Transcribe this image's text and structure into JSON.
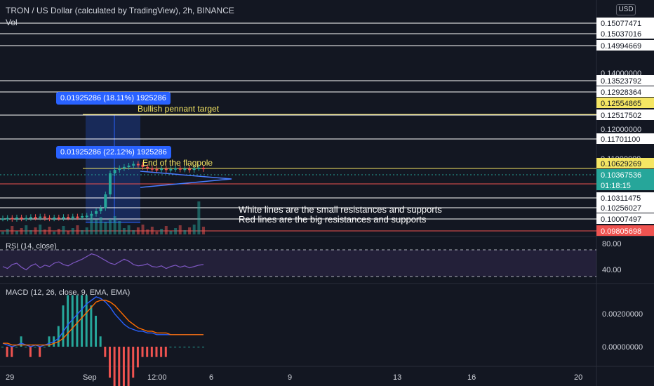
{
  "header": {
    "title": "TRON / US Dollar (calculated by TradingView), 2h, BINANCE",
    "vol_label": "Vol",
    "currency_button": "USD"
  },
  "annotations": {
    "measure_1": "0.01925286 (18.11%) 1925286",
    "measure_2": "0.01925286 (22.12%) 1925286",
    "target_label": "Bullish pennant target",
    "flagpole_label": "End of the flagpole",
    "note_line1": "White lines are the small resistances and supports",
    "note_line2": "Red lines are the big resistances and supports"
  },
  "indicators": {
    "rsi_title": "RSI (14, close)",
    "macd_title": "MACD (12, 26, close, 9, EMA, EMA)"
  },
  "colors": {
    "background": "#131722",
    "up": "#26a69a",
    "down": "#ef5350",
    "white_line": "#ffffff",
    "red_line": "#ef5350",
    "yellow": "#f5e663",
    "blue_accent": "#2962ff",
    "rsi_line": "#7e57c2",
    "macd_line": "#2962ff",
    "signal_line": "#ff6d00"
  },
  "chart_data": {
    "type": "line",
    "price_axis": {
      "labels": [
        "0.15077471",
        "0.15037016",
        "0.14994669",
        "0.14000000",
        "0.13523792",
        "0.12928364",
        "0.12554865",
        "0.12517502",
        "0.12000000",
        "0.11701100",
        "0.11000000",
        "0.10629269",
        "0.10367536",
        "01:18:15",
        "0.10311475",
        "0.10256027",
        "0.10007497",
        "0.09805698"
      ],
      "ylim": [
        0.098,
        0.152
      ]
    },
    "time_axis": [
      "29",
      "Sep",
      "12:00",
      "6",
      "9",
      "13",
      "16",
      "20"
    ],
    "white_lines": [
      0.15077471,
      0.15037016,
      0.14994669,
      0.13523792,
      0.12928364,
      0.12517502,
      0.117011,
      0.10311475,
      0.10256027,
      0.10007497
    ],
    "red_lines": [
      0.09805698,
      0.10629269
    ],
    "yellow_lines": [
      0.12554865,
      0.10629269
    ],
    "current_price": 0.10367536,
    "highlight_labels": {
      "yellow_tags": [
        "0.12554865",
        "0.10629269"
      ],
      "green_tag": "0.10367536",
      "green_countdown": "01:18:15",
      "red_tag": "0.09805698"
    },
    "price_series": [
      0.1002,
      0.1003,
      0.1001,
      0.1004,
      0.1002,
      0.1003,
      0.1005,
      0.1004,
      0.1006,
      0.1003,
      0.1002,
      0.1004,
      0.1003,
      0.1005,
      0.1004,
      0.1006,
      0.1005,
      0.1007,
      0.1008,
      0.1012,
      0.1018,
      0.1025,
      0.1032,
      0.104,
      0.1048,
      0.1052,
      0.1055,
      0.1058,
      0.1062,
      0.106,
      0.1055,
      0.1052,
      0.105,
      0.1049,
      0.1051,
      0.1048,
      0.105,
      0.1052,
      0.1049,
      0.1051,
      0.1048,
      0.1052,
      0.1053,
      0.105
    ],
    "rsi": {
      "levels": [
        "80.00",
        "40.00"
      ],
      "values": [
        55,
        52,
        58,
        60,
        54,
        50,
        56,
        59,
        53,
        57,
        55,
        60,
        62,
        58,
        56,
        60,
        63,
        66,
        70,
        74,
        72,
        68,
        64,
        60,
        58,
        62,
        66,
        63,
        58,
        56,
        57,
        59,
        55,
        54,
        56,
        52,
        55,
        57,
        54,
        56,
        53,
        55,
        57,
        58
      ]
    },
    "macd": {
      "levels": [
        "0.00200000",
        "0.00000000"
      ],
      "macd": [
        0.0002,
        0.0001,
        0.0,
        0.0001,
        0.0002,
        0.0001,
        0.0,
        0.0001,
        0.0,
        0.0001,
        0.0002,
        0.0003,
        0.0005,
        0.0009,
        0.0013,
        0.0016,
        0.0019,
        0.0022,
        0.0025,
        0.0027,
        0.0029,
        0.0028,
        0.0026,
        0.0023,
        0.0019,
        0.0016,
        0.0013,
        0.0011,
        0.001,
        0.0009,
        0.0009,
        0.0008,
        0.0008,
        0.0007,
        0.0007,
        0.0007,
        0.0007,
        0.0007,
        0.0007,
        0.0007,
        0.0007,
        0.0007,
        0.0007,
        0.0007
      ],
      "signal": [
        0.0002,
        0.0002,
        0.0001,
        0.0001,
        0.0001,
        0.0001,
        0.0001,
        0.0001,
        0.0001,
        0.0001,
        0.0001,
        0.0002,
        0.0003,
        0.0005,
        0.0008,
        0.0011,
        0.0014,
        0.0017,
        0.002,
        0.0023,
        0.0026,
        0.0027,
        0.0027,
        0.0026,
        0.0024,
        0.0021,
        0.0018,
        0.0015,
        0.0013,
        0.0011,
        0.001,
        0.0009,
        0.0009,
        0.0008,
        0.0008,
        0.0008,
        0.0007,
        0.0007,
        0.0007,
        0.0007,
        0.0007,
        0.0007,
        0.0007,
        0.0007
      ]
    }
  }
}
